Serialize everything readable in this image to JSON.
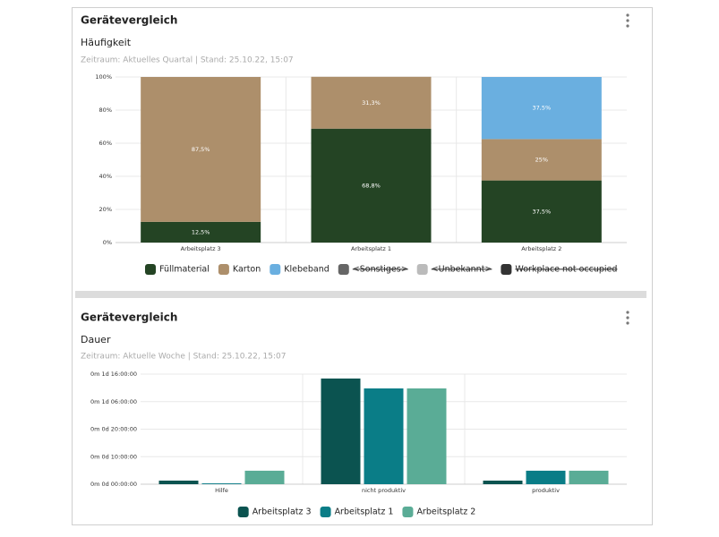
{
  "chart_data": [
    {
      "type": "stacked_bar",
      "card_title": "Gerätevergleich",
      "title": "Häufigkeit",
      "subtitle": "Zeitraum: Aktuelles Quartal | Stand: 25.10.22, 15:07",
      "categories": [
        "Arbeitsplatz 3",
        "Arbeitsplatz 1",
        "Arbeitsplatz 2"
      ],
      "series": [
        {
          "name": "Füllmaterial",
          "color": "#244424",
          "values": [
            12.5,
            68.8,
            37.5
          ],
          "value_labels": [
            "12,5%",
            "68,8%",
            "37,5%"
          ]
        },
        {
          "name": "Karton",
          "color": "#ad8f6b",
          "values": [
            87.5,
            31.3,
            25
          ],
          "value_labels": [
            "87,5%",
            "31,3%",
            "25%"
          ]
        },
        {
          "name": "Klebeband",
          "color": "#6aafe0",
          "values": [
            null,
            null,
            37.5
          ],
          "value_labels": [
            null,
            null,
            "37,5%"
          ]
        },
        {
          "name": "<Sonstiges>",
          "color": "#666666",
          "values": [
            null,
            null,
            null
          ],
          "hidden": true
        },
        {
          "name": "<Unbekannt>",
          "color": "#bbbbbb",
          "values": [
            null,
            null,
            null
          ],
          "hidden": true
        },
        {
          "name": "Workplace not occupied",
          "color": "#333333",
          "values": [
            null,
            null,
            null
          ],
          "hidden": true
        }
      ],
      "ylim": [
        0,
        100
      ],
      "yticks": [
        {
          "value": 0,
          "label": "0%"
        },
        {
          "value": 20,
          "label": "20%"
        },
        {
          "value": 40,
          "label": "40%"
        },
        {
          "value": 60,
          "label": "60%"
        },
        {
          "value": 80,
          "label": "80%"
        },
        {
          "value": 100,
          "label": "100%"
        }
      ],
      "grid": true
    },
    {
      "type": "grouped_bar",
      "card_title": "Gerätevergleich",
      "title": "Dauer",
      "subtitle": "Zeitraum: Aktuelle Woche | Stand: 25.10.22, 15:07",
      "categories": [
        "Hilfe",
        "nicht produktiv",
        "produktiv"
      ],
      "series": [
        {
          "name": "Arbeitsplatz 3",
          "color": "#0b5350",
          "values": [
            1.3,
            38.4,
            1.3
          ]
        },
        {
          "name": "Arbeitsplatz 1",
          "color": "#0a7d87",
          "values": [
            0.3,
            34.8,
            4.9
          ]
        },
        {
          "name": "Arbeitsplatz 2",
          "color": "#5aac96",
          "values": [
            4.9,
            34.8,
            4.9
          ]
        }
      ],
      "ylim": [
        0,
        40
      ],
      "yticks": [
        {
          "value": 0,
          "label": "0m 0d 00:00:00"
        },
        {
          "value": 10,
          "label": "0m 0d 10:00:00"
        },
        {
          "value": 20,
          "label": "0m 0d 20:00:00"
        },
        {
          "value": 30,
          "label": "0m 1d 06:00:00"
        },
        {
          "value": 40,
          "label": "0m 1d 16:00:00"
        }
      ],
      "grid": true
    }
  ]
}
